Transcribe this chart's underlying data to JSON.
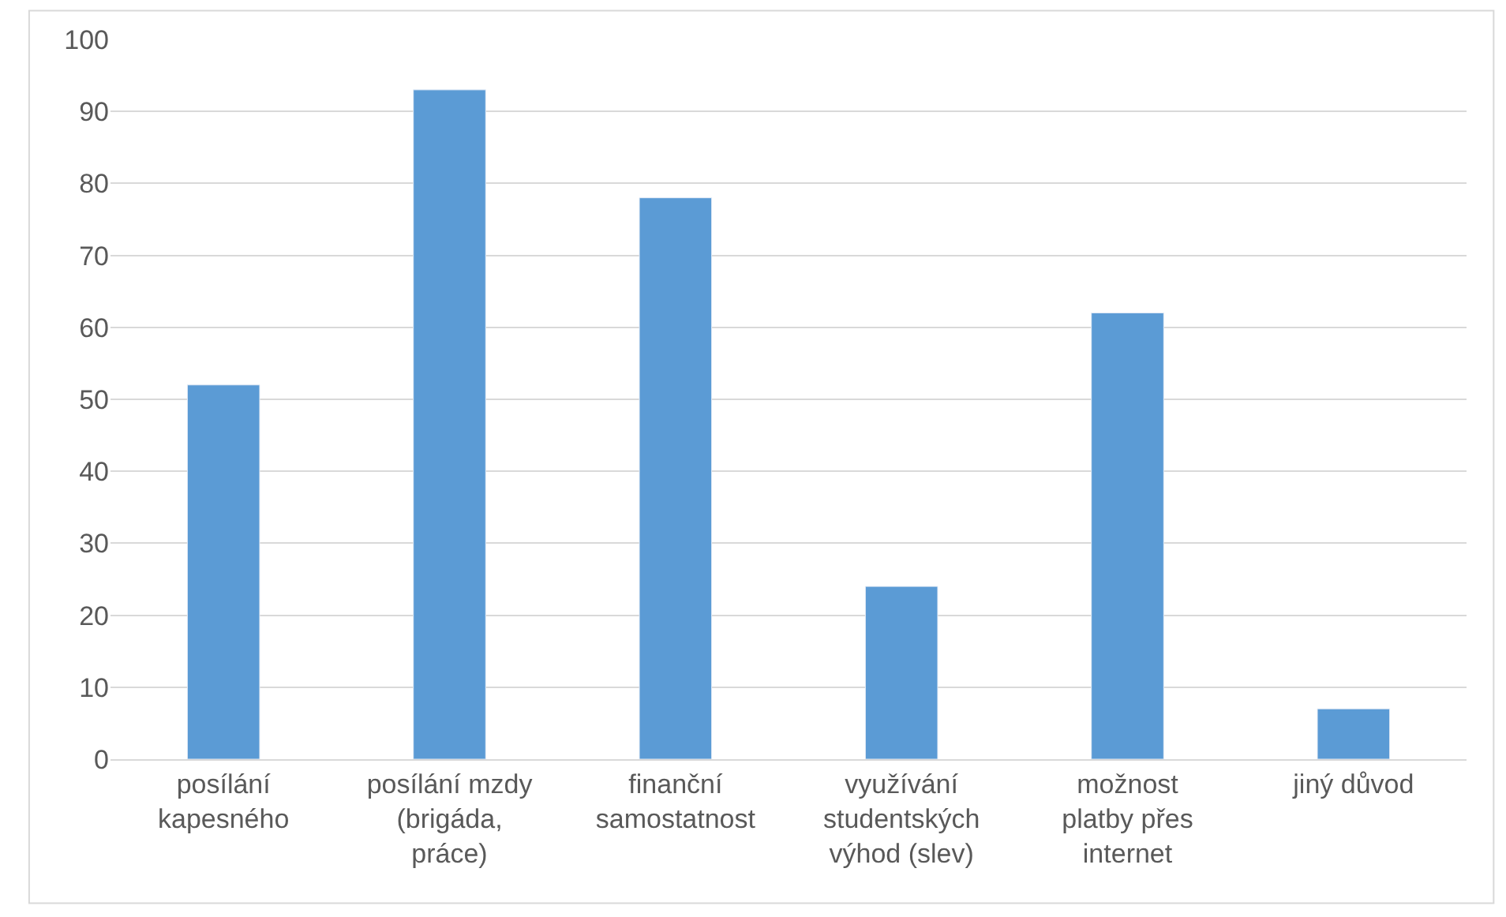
{
  "chart_data": {
    "type": "bar",
    "categories": [
      "posílání kapesného",
      "posílání mzdy (brigáda, práce)",
      "finanční samostatnost",
      "využívání studentských výhod (slev)",
      "možnost platby přes internet",
      "jiný důvod"
    ],
    "values": [
      52,
      93,
      78,
      24,
      62,
      7
    ],
    "color": "#5b9bd5",
    "ylim": [
      0,
      100
    ],
    "yticks": [
      0,
      10,
      20,
      30,
      40,
      50,
      60,
      70,
      80,
      90,
      100
    ],
    "grid": "y"
  }
}
